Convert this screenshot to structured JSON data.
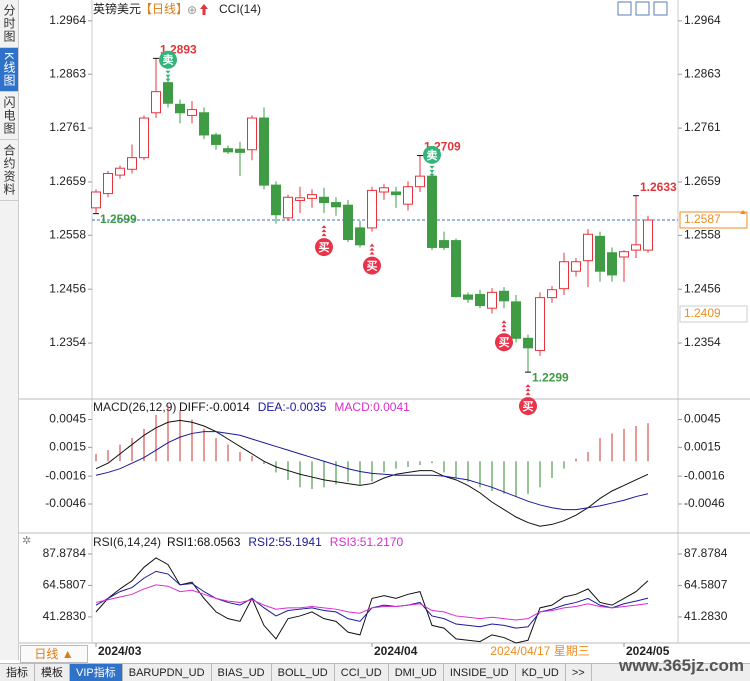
{
  "header": {
    "symbol": "英镑美元",
    "period": "【日线】",
    "add_icon": "⊕",
    "indicator": "CCI(14)"
  },
  "sidebar": [
    "分时图",
    "K线图",
    "闪电图",
    "合约资料"
  ],
  "sidebar_active": 1,
  "period_button": "日线 ▲",
  "tabs": [
    "指标",
    "模板",
    "VIP指标",
    "BARUPDN_UD",
    "BIAS_UD",
    "BOLL_UD",
    "CCI_UD",
    "DMI_UD",
    "INSIDE_UD",
    "KD_UD",
    ">>"
  ],
  "tabs_active": 2,
  "watermark": "www.365jz.com",
  "chart_data": [
    {
      "type": "candlestick",
      "categories": [
        "2024/03",
        null,
        null,
        null,
        null,
        null,
        null,
        null,
        null,
        null,
        null,
        null,
        null,
        null,
        null,
        null,
        null,
        null,
        null,
        null,
        null,
        null,
        null,
        "2024/04",
        null,
        null,
        null,
        null,
        null,
        null,
        null,
        null,
        null,
        null,
        null,
        null,
        null,
        null,
        null,
        null,
        null,
        null,
        null,
        null,
        "2024/05",
        null,
        null
      ],
      "open": [
        1.261,
        1.2637,
        1.2672,
        1.2683,
        1.2705,
        1.279,
        1.2847,
        1.2806,
        1.2785,
        1.279,
        1.2748,
        1.2722,
        1.2721,
        1.272,
        1.278,
        1.2653,
        1.2591,
        1.2624,
        1.2628,
        1.263,
        1.262,
        1.2615,
        1.2572,
        1.2572,
        1.264,
        1.264,
        1.2617,
        1.265,
        1.267,
        1.2548,
        1.2548,
        1.2445,
        1.2446,
        1.242,
        1.2452,
        1.2432,
        1.2363,
        1.234,
        1.244,
        1.2457,
        1.249,
        1.251,
        1.2556,
        1.2525,
        1.2517,
        1.253,
        1.253
      ],
      "high": [
        1.2645,
        1.268,
        1.269,
        1.273,
        1.2785,
        1.2893,
        1.286,
        1.2815,
        1.2812,
        1.28,
        1.2752,
        1.2728,
        1.2735,
        1.2785,
        1.28,
        1.266,
        1.2635,
        1.265,
        1.2645,
        1.2648,
        1.263,
        1.2625,
        1.2585,
        1.265,
        1.2655,
        1.265,
        1.266,
        1.2709,
        1.268,
        1.2565,
        1.2552,
        1.245,
        1.2455,
        1.2458,
        1.246,
        1.2445,
        1.237,
        1.245,
        1.2462,
        1.2525,
        1.2515,
        1.257,
        1.2565,
        1.2535,
        1.253,
        1.2633,
        1.2595
      ],
      "low": [
        1.2599,
        1.263,
        1.2665,
        1.2675,
        1.27,
        1.278,
        1.28,
        1.277,
        1.277,
        1.274,
        1.272,
        1.2712,
        1.267,
        1.27,
        1.2645,
        1.258,
        1.2585,
        1.26,
        1.261,
        1.26,
        1.2595,
        1.2545,
        1.2535,
        1.2565,
        1.2625,
        1.261,
        1.2605,
        1.264,
        1.253,
        1.253,
        1.244,
        1.243,
        1.242,
        1.241,
        1.242,
        1.2355,
        1.2299,
        1.233,
        1.243,
        1.2445,
        1.248,
        1.246,
        1.247,
        1.247,
        1.247,
        1.2515,
        1.2525
      ],
      "close": [
        1.264,
        1.2675,
        1.2685,
        1.2705,
        1.278,
        1.283,
        1.2808,
        1.279,
        1.2796,
        1.2748,
        1.273,
        1.2716,
        1.2715,
        1.278,
        1.2653,
        1.2597,
        1.263,
        1.2629,
        1.2635,
        1.262,
        1.2612,
        1.255,
        1.254,
        1.2643,
        1.2648,
        1.2635,
        1.265,
        1.267,
        1.2535,
        1.2535,
        1.2442,
        1.2437,
        1.2425,
        1.245,
        1.2434,
        1.2363,
        1.2345,
        1.244,
        1.2455,
        1.2508,
        1.2508,
        1.256,
        1.249,
        1.2483,
        1.2527,
        1.254,
        1.2587
      ],
      "up_color": "#e8333c",
      "down_color": "#3f9c45",
      "ylim": [
        1.225,
        1.2994
      ],
      "yticks": [
        1.2964,
        1.2863,
        1.2761,
        1.2659,
        1.2558,
        1.2456,
        1.2354
      ],
      "high_marks": [
        5,
        27,
        45
      ],
      "low_marks": [
        0,
        36
      ],
      "high_color": "#e0353a",
      "low_color": "#3f9c45",
      "signals": [
        {
          "label": "卖",
          "index": 6
        },
        {
          "label": "卖",
          "index": 28
        },
        {
          "label": "买",
          "index": 19
        },
        {
          "label": "买",
          "index": 23
        },
        {
          "label": "买",
          "index": 34
        },
        {
          "label": "买",
          "index": 36
        }
      ],
      "sell_color": "#34b37a",
      "buy_color": "#e8334a",
      "crosshair": {
        "value": 1.2409,
        "index": 37,
        "date_label": "2024/04/17 星期三"
      },
      "accent_color": "#f08c1e"
    },
    {
      "type": "macd",
      "title": "MACD(26,12,9)",
      "series": [
        {
          "name": "DIFF:-0.0014",
          "color": "#111111",
          "values": [
            -0.0008,
            -0.0002,
            0.0008,
            0.0018,
            0.0028,
            0.0036,
            0.0042,
            0.0044,
            0.0042,
            0.0038,
            0.0032,
            0.0024,
            0.0016,
            0.0008,
            0.0,
            -0.0006,
            -0.001,
            -0.0014,
            -0.0017,
            -0.002,
            -0.0022,
            -0.0024,
            -0.0026,
            -0.0024,
            -0.0018,
            -0.0014,
            -0.0012,
            -0.001,
            -0.001,
            -0.0016,
            -0.002,
            -0.0026,
            -0.0034,
            -0.0044,
            -0.0052,
            -0.006,
            -0.0066,
            -0.007,
            -0.0068,
            -0.0064,
            -0.0058,
            -0.005,
            -0.004,
            -0.0032,
            -0.0026,
            -0.002,
            -0.0014
          ]
        },
        {
          "name": "DEA:-0.0035",
          "color": "#1a1a9c",
          "values": [
            -0.0015,
            -0.0012,
            -0.0008,
            -0.0002,
            0.0004,
            0.0012,
            0.002,
            0.0026,
            0.003,
            0.0032,
            0.0032,
            0.003,
            0.0028,
            0.0024,
            0.002,
            0.0016,
            0.0012,
            0.0008,
            0.0004,
            0.0,
            -0.0004,
            -0.0008,
            -0.0011,
            -0.0013,
            -0.0014,
            -0.0015,
            -0.0015,
            -0.0015,
            -0.0015,
            -0.0016,
            -0.0018,
            -0.002,
            -0.0024,
            -0.0028,
            -0.0033,
            -0.0038,
            -0.0043,
            -0.0047,
            -0.005,
            -0.0052,
            -0.0052,
            -0.005,
            -0.0048,
            -0.0045,
            -0.0042,
            -0.0038,
            -0.0035
          ]
        },
        {
          "name": "MACD:0.0041",
          "color": "#d92ed0",
          "bars": true,
          "values": [
            0.0008,
            0.0012,
            0.0018,
            0.0025,
            0.0035,
            0.005,
            0.006,
            0.0055,
            0.0045,
            0.0035,
            0.0025,
            0.0018,
            0.001,
            0.0006,
            -0.0003,
            -0.0012,
            -0.002,
            -0.0028,
            -0.003,
            -0.0028,
            -0.0025,
            -0.0022,
            -0.0025,
            -0.0022,
            -0.0012,
            -0.0008,
            -0.0006,
            -0.0004,
            -0.0002,
            -0.0012,
            -0.0018,
            -0.0022,
            -0.0028,
            -0.0032,
            -0.0035,
            -0.0038,
            -0.0035,
            -0.0028,
            -0.0018,
            -0.0008,
            0.0003,
            0.001,
            0.0025,
            0.003,
            0.0035,
            0.0038,
            0.0041
          ]
        }
      ],
      "bar_up_color": "#d9534f",
      "bar_down_color": "#4f9a4f",
      "ylim": [
        -0.0074,
        0.0066
      ],
      "yticks": [
        0.0045,
        0.0015,
        -0.0016,
        -0.0046
      ]
    },
    {
      "type": "rsi",
      "title": "RSI(6,14,24)",
      "series": [
        {
          "name": "RSI1:68.0563",
          "color": "#111111",
          "values": [
            45,
            55,
            62,
            68,
            78,
            85,
            80,
            65,
            67,
            55,
            45,
            40,
            38,
            55,
            35,
            25,
            40,
            42,
            45,
            40,
            38,
            30,
            28,
            55,
            57,
            55,
            58,
            60,
            35,
            33,
            25,
            24,
            23,
            28,
            26,
            22,
            24,
            48,
            50,
            56,
            58,
            62,
            52,
            50,
            55,
            60,
            68.0563
          ]
        },
        {
          "name": "RSI2:55.1941",
          "color": "#1a1a9c",
          "values": [
            50,
            55,
            60,
            63,
            70,
            75,
            73,
            65,
            66,
            60,
            55,
            52,
            50,
            55,
            48,
            42,
            46,
            47,
            48,
            46,
            45,
            40,
            38,
            48,
            50,
            49,
            50,
            52,
            42,
            40,
            36,
            35,
            34,
            36,
            35,
            33,
            34,
            45,
            47,
            50,
            52,
            55,
            50,
            48,
            51,
            53,
            55.1941
          ]
        },
        {
          "name": "RSI3:51.2170",
          "color": "#d92ed0",
          "values": [
            52,
            54,
            56,
            58,
            62,
            65,
            64,
            60,
            61,
            58,
            55,
            53,
            52,
            54,
            50,
            47,
            48,
            48,
            49,
            48,
            47,
            45,
            44,
            48,
            49,
            49,
            50,
            51,
            46,
            45,
            42,
            41,
            40,
            41,
            40,
            39,
            40,
            45,
            46,
            48,
            49,
            51,
            49,
            48,
            49,
            50,
            51.217
          ]
        }
      ],
      "ylim": [
        24.2,
        101.9
      ],
      "yticks": [
        87.8784,
        64.5807,
        {
          "value": 41.283,
          "label": "41.2830"
        }
      ]
    }
  ]
}
